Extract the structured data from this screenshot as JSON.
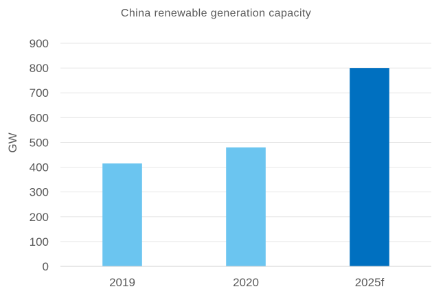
{
  "chart_data": {
    "type": "bar",
    "title": "China renewable generation capacity",
    "xlabel": "",
    "ylabel": "GW",
    "categories": [
      "2019",
      "2020",
      "2025f"
    ],
    "values": [
      415,
      480,
      800
    ],
    "bar_colors": [
      "#6BC5F0",
      "#6BC5F0",
      "#0070C0"
    ],
    "ylim": [
      0,
      900
    ],
    "yticks": [
      0,
      100,
      200,
      300,
      400,
      500,
      600,
      700,
      800,
      900
    ],
    "grid": true,
    "legend": "none",
    "colors": {
      "gridline": "#E6E6E6",
      "axis_line": "#D0D0D0",
      "text": "#595959"
    }
  }
}
